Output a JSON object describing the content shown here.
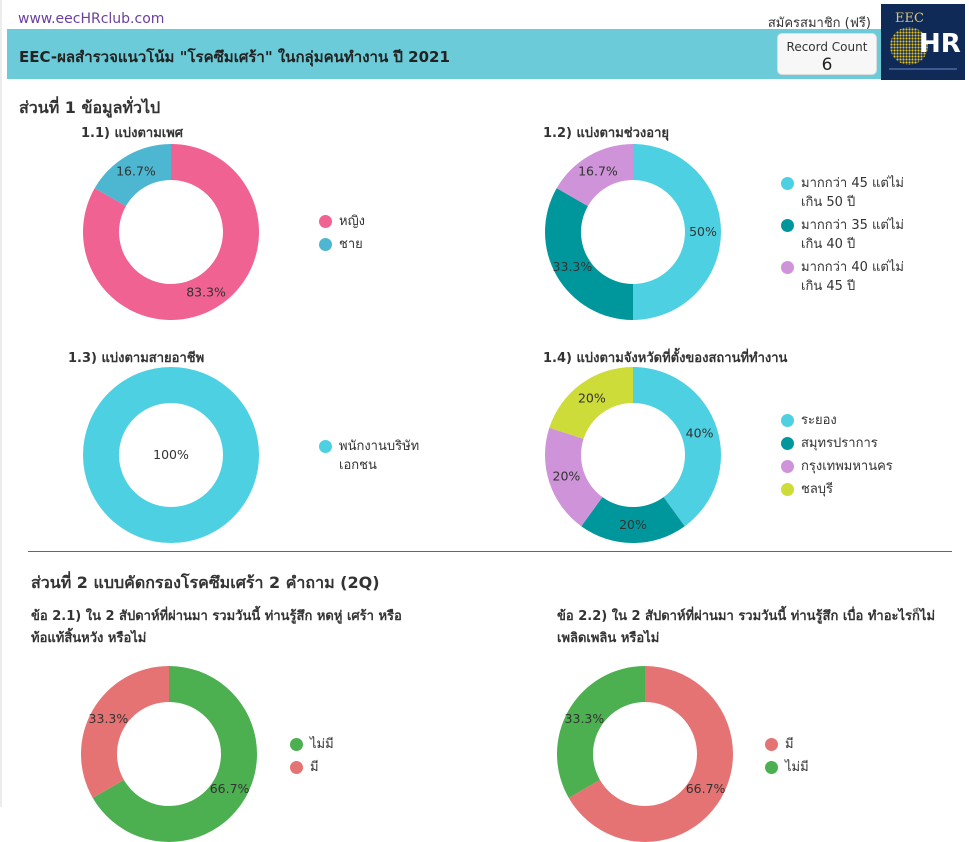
{
  "header": {
    "site_link": "www.eecHRclub.com",
    "signup_link": "สมัครสมาชิก (ฟรี)",
    "title": "EEC-ผลสำรวจแนวโน้ม \"โรคซึมเศร้า\" ในกลุ่มคนทำงาน ปี 2021",
    "record_count_label": "Record Count",
    "record_count_value": "6",
    "logo_text_top": "EEC",
    "logo_text_main": "HR"
  },
  "section1": {
    "title": "ส่วนที่ 1 ข้อมูลทั่วไป"
  },
  "section2": {
    "title": "ส่วนที่ 2 แบบคัดกรองโรคซึมเศร้า 2 คำถาม (2Q)"
  },
  "chart_data": [
    {
      "type": "pie",
      "title": "1.1) แบ่งตามเพศ",
      "categories": [
        "หญิง",
        "ชาย"
      ],
      "values": [
        83.3,
        16.7
      ],
      "labels": [
        "83.3%",
        "16.7%"
      ],
      "colors": [
        "#f06292",
        "#4db6d0"
      ],
      "legend_order": [
        0,
        1
      ],
      "start_angle": 0
    },
    {
      "type": "pie",
      "title": "1.2) แบ่งตามช่วงอายุ",
      "categories": [
        "มากกว่า 45 แต่ไม่เกิน 50 ปี",
        "มากกว่า 35 แต่ไม่เกิน 40 ปี",
        "มากกว่า 40 แต่ไม่เกิน 45 ปี"
      ],
      "legend_lines": [
        [
          "มากกว่า 45 แต่ไม่",
          "เกิน 50 ปี"
        ],
        [
          "มากกว่า 35 แต่ไม่",
          "เกิน 40 ปี"
        ],
        [
          "มากกว่า 40 แต่ไม่",
          "เกิน 45 ปี"
        ]
      ],
      "values": [
        50,
        33.3,
        16.7
      ],
      "labels": [
        "50%",
        "33.3%",
        "16.7%"
      ],
      "colors": [
        "#4dd0e1",
        "#00979c",
        "#ce93d8"
      ],
      "legend_order": [
        0,
        1,
        2
      ],
      "start_angle": 0
    },
    {
      "type": "pie",
      "title": "1.3) แบ่งตามสายอาชีพ",
      "categories": [
        "พนักงานบริษัทเอกชน"
      ],
      "legend_lines": [
        [
          "พนักงานบริษัท",
          "เอกชน"
        ]
      ],
      "values": [
        100
      ],
      "labels": [
        "100%"
      ],
      "colors": [
        "#4dd0e1"
      ],
      "legend_order": [
        0
      ],
      "start_angle": 0
    },
    {
      "type": "pie",
      "title": "1.4) แบ่งตามจังหวัดที่ตั้งของสถานที่ทำงาน",
      "categories": [
        "ระยอง",
        "สมุทรปราการ",
        "กรุงเทพมหานคร",
        "ชลบุรี"
      ],
      "values": [
        40,
        20,
        20,
        20
      ],
      "labels": [
        "40%",
        "20%",
        "20%",
        "20%"
      ],
      "colors": [
        "#4dd0e1",
        "#00979c",
        "#ce93d8",
        "#cddc39"
      ],
      "legend_order": [
        0,
        1,
        2,
        3
      ],
      "start_angle": 0
    },
    {
      "type": "pie",
      "title": "ข้อ 2.1) ใน 2 สัปดาห์ที่ผ่านมา รวมวันนี้ ท่านรู้สึก หดหู่ เศร้า หรือท้อแท้สิ้นหวัง หรือไม่",
      "title_lines": [
        "ข้อ 2.1) ใน 2 สัปดาห์ที่ผ่านมา รวมวันนี้ ท่านรู้สึก หดหู่ เศร้า หรือ",
        "ท้อแท้สิ้นหวัง หรือไม่"
      ],
      "categories": [
        "ไม่มี",
        "มี"
      ],
      "values": [
        66.7,
        33.3
      ],
      "labels": [
        "66.7%",
        "33.3%"
      ],
      "colors": [
        "#4caf50",
        "#e57373"
      ],
      "legend_order": [
        0,
        1
      ],
      "start_angle": 0
    },
    {
      "type": "pie",
      "title": "ข้อ 2.2) ใน 2 สัปดาห์ที่ผ่านมา รวมวันนี้ ท่านรู้สึก เบื่อ ทำอะไรก็ไม่เพลิดเพลิน หรือไม่",
      "title_lines": [
        "ข้อ 2.2) ใน 2 สัปดาห์ที่ผ่านมา รวมวันนี้ ท่านรู้สึก เบื่อ ทำอะไรก็ไม่",
        "เพลิดเพลิน หรือไม่"
      ],
      "categories": [
        "มี",
        "ไม่มี"
      ],
      "values": [
        66.7,
        33.3
      ],
      "labels": [
        "66.7%",
        "33.3%"
      ],
      "colors": [
        "#e57373",
        "#4caf50"
      ],
      "legend_order": [
        0,
        1
      ],
      "start_angle": 0
    }
  ]
}
